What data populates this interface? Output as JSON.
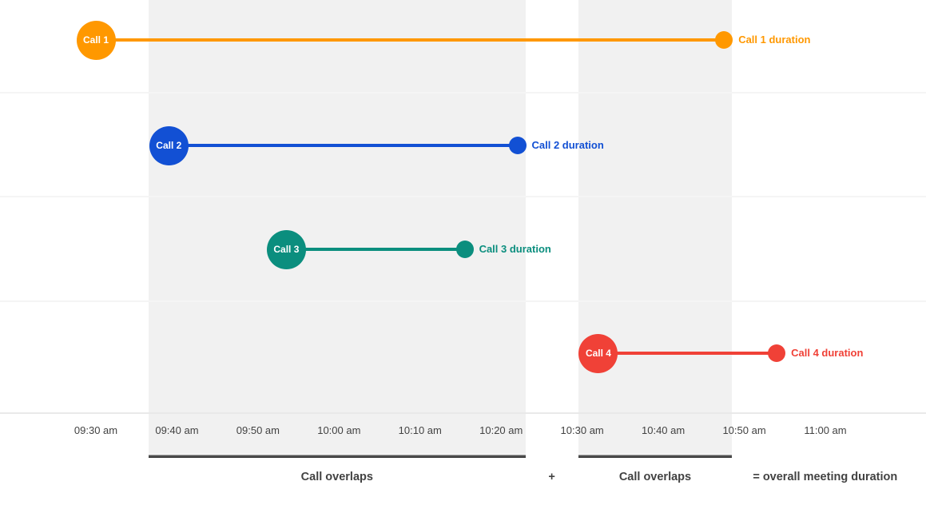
{
  "chart_data": {
    "type": "bar",
    "subtype": "gantt-timeline",
    "title": "",
    "x_axis": {
      "tick_labels": [
        "09:30 am",
        "09:40 am",
        "09:50 am",
        "10:00 am",
        "10:10 am",
        "10:20 am",
        "10:30 am",
        "10:40 am",
        "10:50 am",
        "11:00 am"
      ],
      "tick_minutes": [
        570,
        580,
        590,
        600,
        610,
        620,
        630,
        640,
        650,
        660
      ],
      "range_minutes": [
        570,
        660
      ],
      "grid": "horizontal row lines only",
      "legend": "inline labels at end of each bar"
    },
    "calls": [
      {
        "label": "Call 1",
        "duration_label": "Call 1 duration",
        "color": "#FF9800",
        "row": 0,
        "start_min": 570,
        "end_min": 647.5,
        "start_time": "09:30 am",
        "end_time": "10:47 am"
      },
      {
        "label": "Call 2",
        "duration_label": "Call 2 duration",
        "color": "#1250D4",
        "row": 1,
        "start_min": 579,
        "end_min": 622,
        "start_time": "09:39 am",
        "end_time": "10:22 am"
      },
      {
        "label": "Call 3",
        "duration_label": "Call 3 duration",
        "color": "#0B8E7E",
        "row": 2,
        "start_min": 593.5,
        "end_min": 615.5,
        "start_time": "09:53 am",
        "end_time": "10:15 am"
      },
      {
        "label": "Call 4",
        "duration_label": "Call 4 duration",
        "color": "#F04137",
        "row": 3,
        "start_min": 632,
        "end_min": 654,
        "start_time": "10:32 am",
        "end_time": "10:54 am"
      }
    ],
    "overlap_regions": [
      {
        "label": "Call overlaps",
        "start_min": 576.5,
        "end_min": 623
      },
      {
        "label": "Call overlaps",
        "start_min": 629.5,
        "end_min": 648.5
      }
    ],
    "annotations": {
      "plus": "+",
      "equals": "= overall meeting duration"
    },
    "colors": {
      "background": "#ffffff",
      "overlap_fill": "#f1f1f1",
      "grid_line": "#f5f5f5",
      "axis_text": "#424242",
      "footer_text": "#424242",
      "bracket": "#3f3f3f"
    }
  }
}
